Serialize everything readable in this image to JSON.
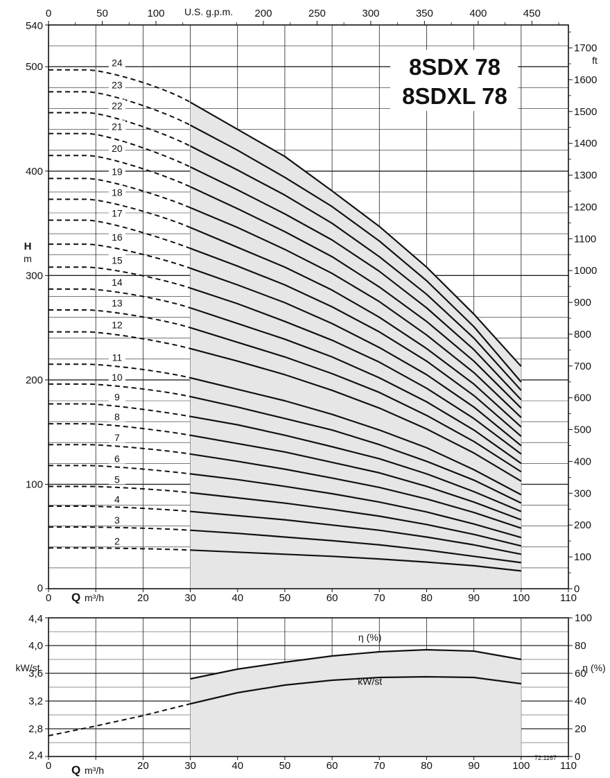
{
  "chart_data": [
    {
      "type": "line",
      "title": "8SDX 78",
      "subtitle": "8SDXL 78",
      "xlabel_bottom": {
        "symbol": "Q",
        "unit": "m³/h"
      },
      "xlabel_top": "U.S. g.p.m.",
      "ylabel_left": {
        "symbol": "H",
        "unit": "m"
      },
      "ylabel_right": "ft",
      "xlim": [
        0,
        110
      ],
      "ylim": [
        0,
        540
      ],
      "x_top_lim": [
        0,
        484
      ],
      "y_right_lim": [
        0,
        1772
      ],
      "x_ticks": [
        0,
        10,
        20,
        30,
        40,
        50,
        60,
        70,
        80,
        90,
        100,
        110
      ],
      "y_ticks": [
        0,
        100,
        200,
        300,
        400,
        500,
        540
      ],
      "x_top_ticks": [
        0,
        50,
        100,
        200,
        250,
        300,
        350,
        400,
        450
      ],
      "y_right_ticks": [
        0,
        100,
        200,
        300,
        400,
        500,
        600,
        700,
        800,
        900,
        1000,
        1100,
        1200,
        1300,
        1400,
        1500,
        1600,
        1700
      ],
      "operating_range": [
        30,
        100
      ],
      "grid": true,
      "series": [
        {
          "name": "2",
          "shutoff": 39,
          "x": [
            30,
            40,
            50,
            60,
            70,
            80,
            90,
            100
          ],
          "y": [
            37,
            35,
            33,
            31,
            28.5,
            25.5,
            22,
            17
          ]
        },
        {
          "name": "3",
          "shutoff": 59,
          "x": [
            30,
            40,
            50,
            60,
            70,
            80,
            90,
            100
          ],
          "y": [
            56,
            53,
            49.5,
            46,
            42,
            37,
            31,
            25
          ]
        },
        {
          "name": "4",
          "shutoff": 79,
          "x": [
            30,
            40,
            50,
            60,
            70,
            80,
            90,
            100
          ],
          "y": [
            74,
            70,
            66,
            61,
            56,
            49.5,
            42,
            33
          ]
        },
        {
          "name": "5",
          "shutoff": 98,
          "x": [
            30,
            40,
            50,
            60,
            70,
            80,
            90,
            100
          ],
          "y": [
            92,
            87,
            82,
            76,
            69.5,
            61.5,
            52,
            41
          ]
        },
        {
          "name": "6",
          "shutoff": 118,
          "x": [
            30,
            40,
            50,
            60,
            70,
            80,
            90,
            100
          ],
          "y": [
            110,
            104.5,
            98,
            91,
            83,
            73.5,
            62,
            49
          ]
        },
        {
          "name": "7",
          "shutoff": 138,
          "x": [
            30,
            40,
            50,
            60,
            70,
            80,
            90,
            100
          ],
          "y": [
            129,
            122,
            114.5,
            106,
            97,
            86,
            73,
            58
          ]
        },
        {
          "name": "8",
          "shutoff": 158,
          "x": [
            30,
            40,
            50,
            60,
            70,
            80,
            90,
            100
          ],
          "y": [
            147,
            139,
            131,
            121,
            111,
            98,
            83,
            66
          ]
        },
        {
          "name": "9",
          "shutoff": 177,
          "x": [
            30,
            40,
            50,
            60,
            70,
            80,
            90,
            100
          ],
          "y": [
            165,
            157,
            147,
            136,
            124.5,
            110,
            93,
            74
          ]
        },
        {
          "name": "10",
          "shutoff": 196,
          "x": [
            30,
            40,
            50,
            60,
            70,
            80,
            90,
            100
          ],
          "y": [
            184,
            174,
            163,
            152,
            138,
            122,
            104,
            82
          ]
        },
        {
          "name": "11",
          "shutoff": 215,
          "x": [
            30,
            40,
            50,
            60,
            70,
            80,
            90,
            100
          ],
          "y": [
            202,
            191,
            180,
            167,
            152,
            135,
            114,
            90
          ]
        },
        {
          "name": "12",
          "shutoff": 246,
          "x": [
            30,
            40,
            50,
            60,
            70,
            80,
            90,
            100
          ],
          "y": [
            230,
            218,
            205,
            190,
            173,
            153,
            130,
            103
          ]
        },
        {
          "name": "13",
          "shutoff": 267,
          "x": [
            30,
            40,
            50,
            60,
            70,
            80,
            90,
            100
          ],
          "y": [
            250,
            236,
            222,
            206,
            188,
            166,
            141,
            112
          ]
        },
        {
          "name": "14",
          "shutoff": 287,
          "x": [
            30,
            40,
            50,
            60,
            70,
            80,
            90,
            100
          ],
          "y": [
            269,
            254,
            239,
            222,
            202,
            179,
            152,
            120
          ]
        },
        {
          "name": "15",
          "shutoff": 308,
          "x": [
            30,
            40,
            50,
            60,
            70,
            80,
            90,
            100
          ],
          "y": [
            288,
            273,
            256,
            238,
            217,
            192,
            163,
            129
          ]
        },
        {
          "name": "16",
          "shutoff": 330,
          "x": [
            30,
            40,
            50,
            60,
            70,
            80,
            90,
            100
          ],
          "y": [
            307,
            291,
            274,
            254,
            231,
            205,
            174,
            137
          ]
        },
        {
          "name": "17",
          "shutoff": 353,
          "x": [
            30,
            40,
            50,
            60,
            70,
            80,
            90,
            100
          ],
          "y": [
            326,
            309,
            291,
            270,
            246,
            218,
            185,
            146
          ]
        },
        {
          "name": "18",
          "shutoff": 373,
          "x": [
            30,
            40,
            50,
            60,
            70,
            80,
            90,
            100
          ],
          "y": [
            346,
            327,
            308,
            286,
            260,
            230,
            196,
            155
          ]
        },
        {
          "name": "19",
          "shutoff": 393,
          "x": [
            30,
            40,
            50,
            60,
            70,
            80,
            90,
            100
          ],
          "y": [
            365,
            346,
            325,
            302,
            275,
            243,
            207,
            164
          ]
        },
        {
          "name": "20",
          "shutoff": 415,
          "x": [
            30,
            40,
            50,
            60,
            70,
            80,
            90,
            100
          ],
          "y": [
            385,
            364,
            342,
            318,
            289,
            256,
            218,
            173
          ]
        },
        {
          "name": "21",
          "shutoff": 436,
          "x": [
            30,
            40,
            50,
            60,
            70,
            80,
            90,
            100
          ],
          "y": [
            404,
            382,
            359,
            334,
            304,
            269,
            229,
            181
          ]
        },
        {
          "name": "22",
          "shutoff": 456,
          "x": [
            30,
            40,
            50,
            60,
            70,
            80,
            90,
            100
          ],
          "y": [
            424,
            401,
            377,
            350,
            318,
            282,
            240,
            190
          ]
        },
        {
          "name": "23",
          "shutoff": 476,
          "x": [
            30,
            40,
            50,
            60,
            70,
            80,
            90,
            100
          ],
          "y": [
            444,
            420,
            394,
            366,
            333,
            295,
            251,
            198
          ]
        },
        {
          "name": "24",
          "shutoff": 497,
          "x": [
            30,
            40,
            50,
            60,
            70,
            80,
            90,
            100
          ],
          "y": [
            466,
            440,
            414,
            381,
            347,
            308,
            263,
            213
          ]
        }
      ]
    },
    {
      "type": "line",
      "xlabel": {
        "symbol": "Q",
        "unit": "m³/h"
      },
      "ylabel_left": "kW/st",
      "ylabel_right": "η (%)",
      "xlim": [
        0,
        110
      ],
      "ylim": [
        2.4,
        4.4
      ],
      "y_right_lim": [
        0,
        100
      ],
      "x_ticks": [
        0,
        10,
        20,
        30,
        40,
        50,
        60,
        70,
        80,
        90,
        100,
        110
      ],
      "y_ticks": [
        "2,4",
        "2,8",
        "3,2",
        "3,6",
        "4,0",
        "4,4"
      ],
      "y_right_ticks": [
        0,
        20,
        40,
        60,
        80,
        100
      ],
      "operating_range": [
        30,
        100
      ],
      "grid": true,
      "annotation": "72.1167",
      "series": [
        {
          "name": "η (%)",
          "axis": "right",
          "x": [
            30,
            40,
            50,
            60,
            70,
            80,
            90,
            100
          ],
          "y": [
            56,
            63,
            68,
            72.5,
            75.5,
            77,
            76,
            70
          ]
        },
        {
          "name": "kW/st",
          "axis": "left",
          "x_dashed": [
            0,
            10,
            20,
            30
          ],
          "y_dashed": [
            2.7,
            2.84,
            2.99,
            3.16
          ],
          "x": [
            30,
            40,
            50,
            60,
            70,
            80,
            90,
            100
          ],
          "y": [
            3.16,
            3.32,
            3.43,
            3.5,
            3.54,
            3.55,
            3.54,
            3.45
          ]
        }
      ]
    }
  ]
}
